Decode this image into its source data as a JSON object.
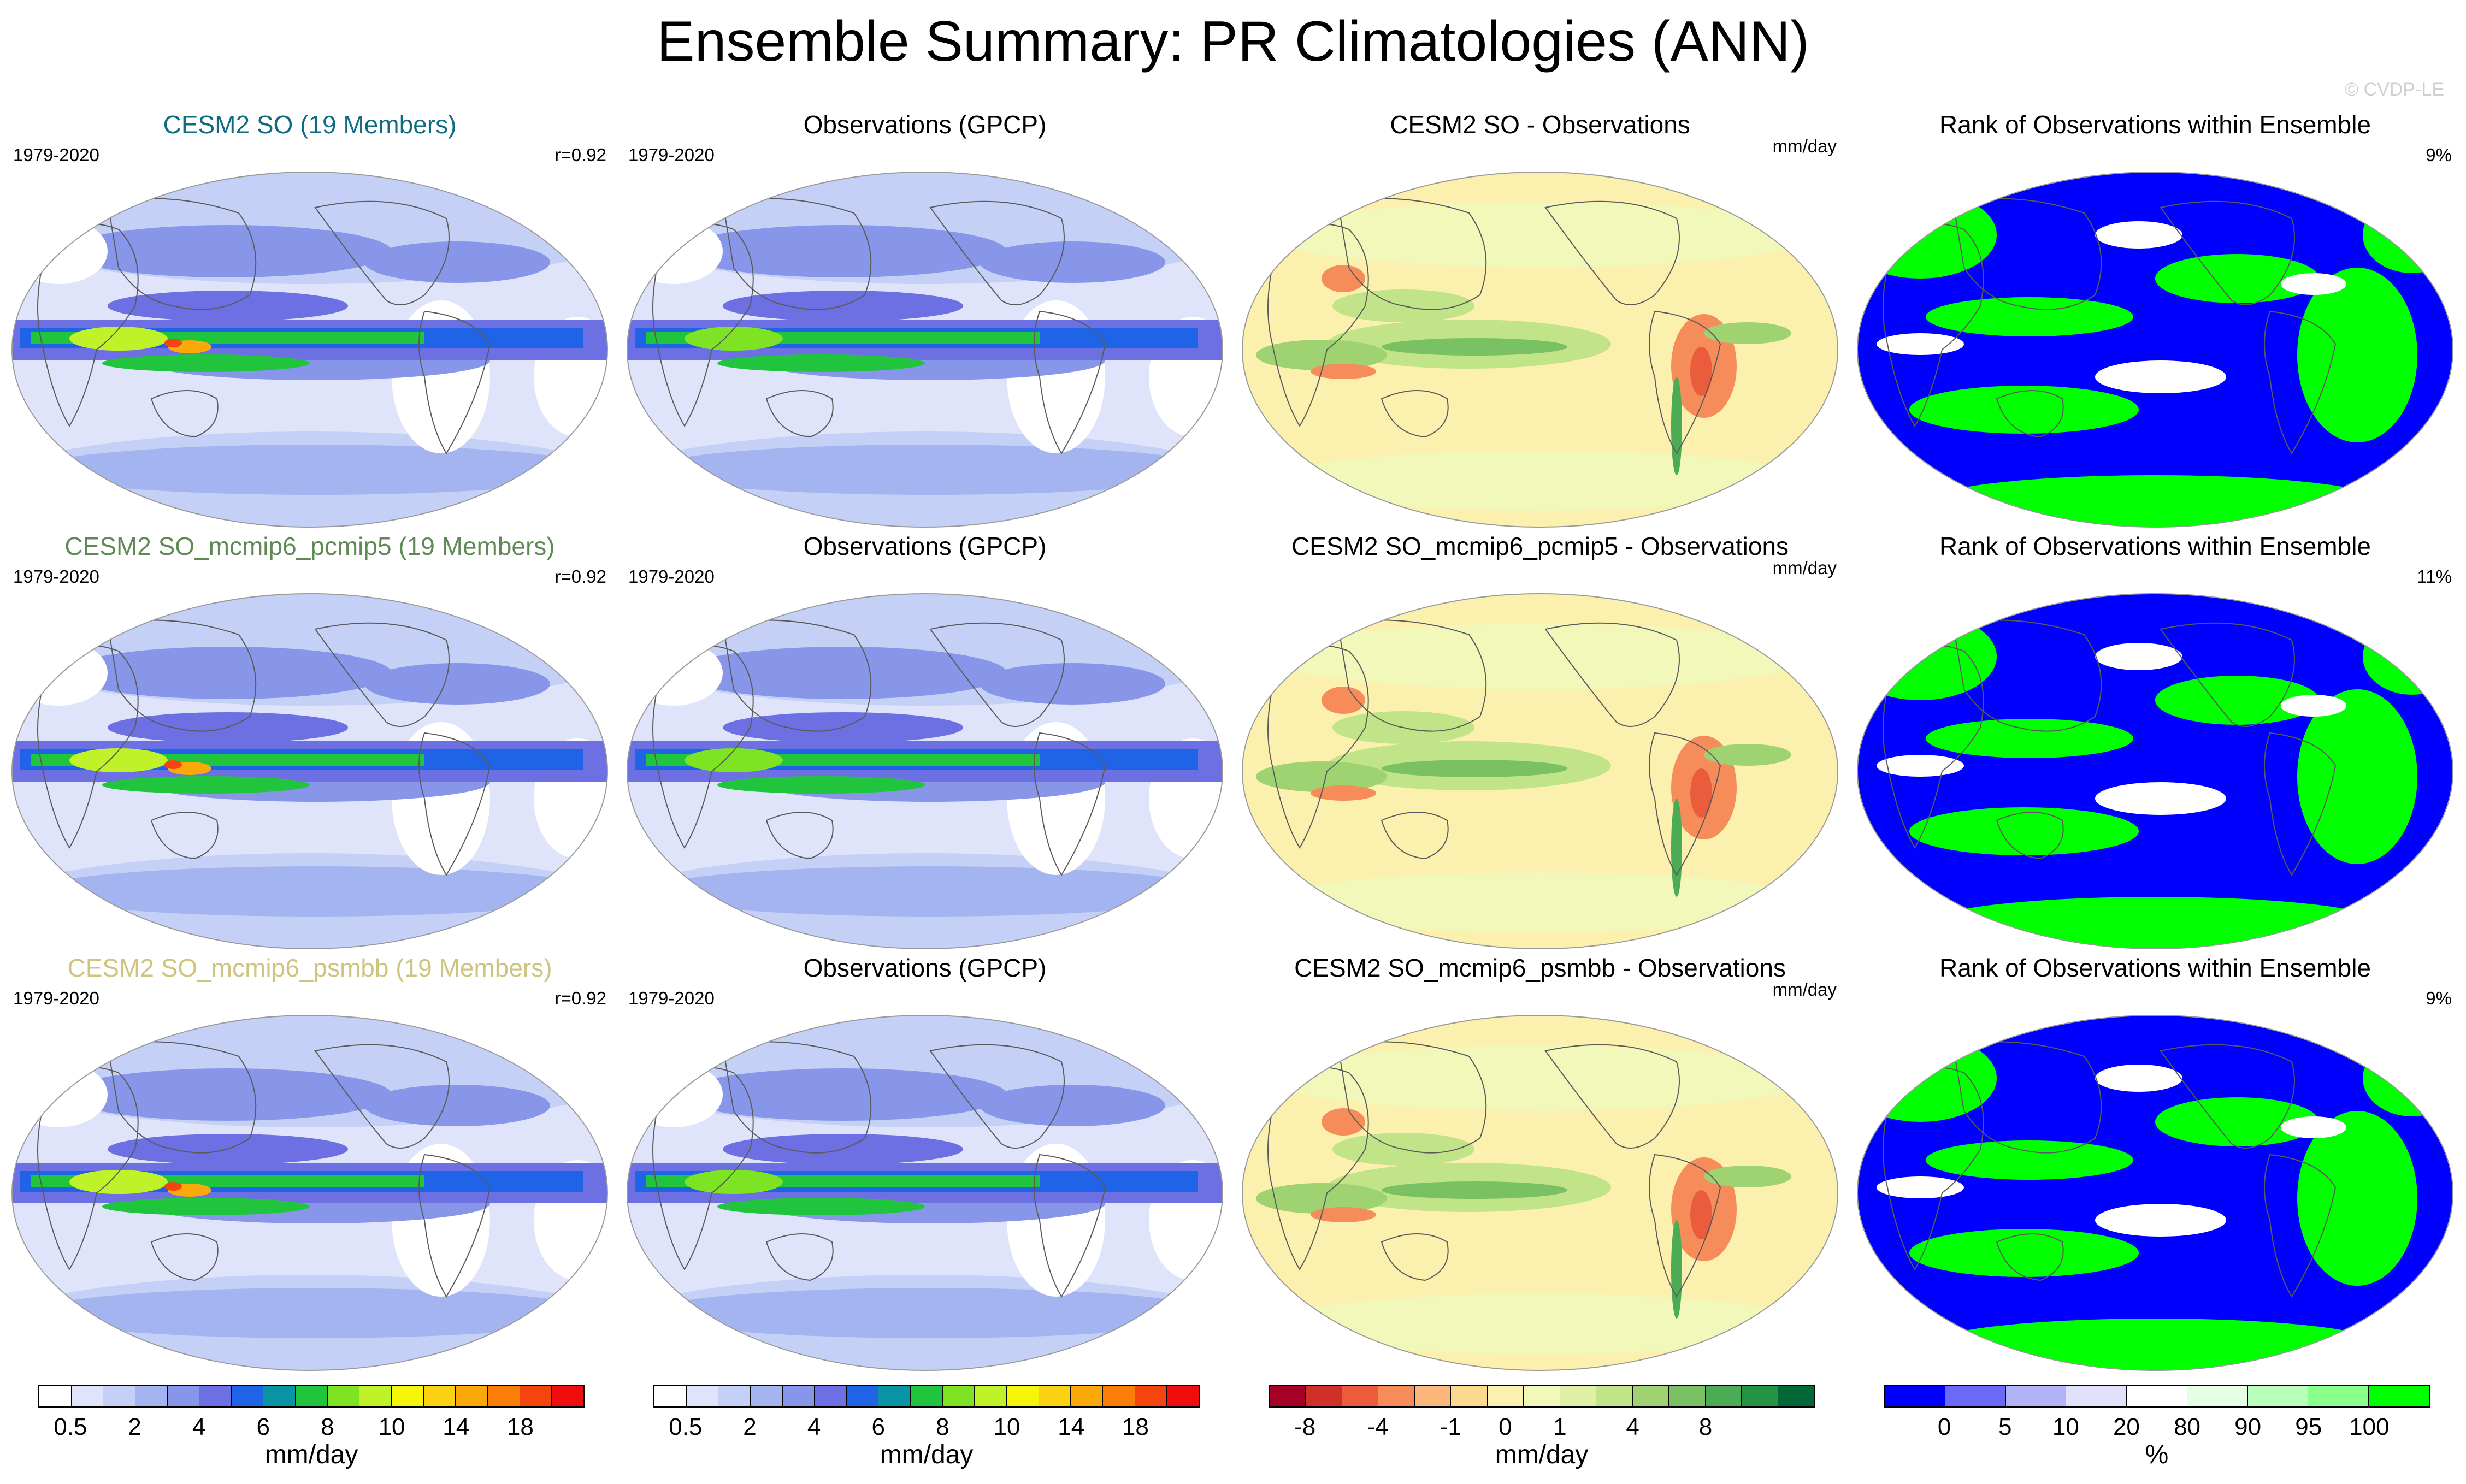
{
  "header": {
    "title": "Ensemble Summary: PR Climatologies (ANN)",
    "watermark": "© CVDP-LE"
  },
  "palettes": {
    "pr": [
      "#ffffff",
      "#dfe4fb",
      "#c5d0f6",
      "#a4b4f0",
      "#8896ea",
      "#6c70e2",
      "#1f63e6",
      "#0a93a4",
      "#20c43d",
      "#7ee322",
      "#bff229",
      "#f5f50a",
      "#fbd213",
      "#fba80a",
      "#fb7e0b",
      "#f5450f",
      "#f00d0d"
    ],
    "diff": [
      "#a50026",
      "#d03027",
      "#eb5c3c",
      "#f68c59",
      "#fbb87a",
      "#fcd98f",
      "#fbf0ad",
      "#f2f7ba",
      "#dff0a6",
      "#c1e488",
      "#9fd372",
      "#79c162",
      "#4cac55",
      "#249444",
      "#006837"
    ],
    "rank": [
      "#0000ff",
      "#6a6af7",
      "#b2b2f8",
      "#e1e1fc",
      "#ffffff",
      "#e5ffe5",
      "#b9ffb9",
      "#8aff8a",
      "#00ff00"
    ]
  },
  "rows": [
    {
      "model": {
        "title": "CESM2 SO (19 Members)",
        "title_color": "#0e6b82",
        "period": "1979-2020",
        "corr": "r=0.92"
      },
      "obs": {
        "title": "Observations (GPCP)",
        "period": "1979-2020"
      },
      "diff": {
        "title": "CESM2 SO - Observations",
        "units": "mm/day"
      },
      "rank": {
        "title": "Rank of Observations within Ensemble",
        "pct": "9%"
      }
    },
    {
      "model": {
        "title": "CESM2 SO_mcmip6_pcmip5 (19 Members)",
        "title_color": "#5f8a55",
        "period": "1979-2020",
        "corr": "r=0.92"
      },
      "obs": {
        "title": "Observations (GPCP)",
        "period": "1979-2020"
      },
      "diff": {
        "title": "CESM2 SO_mcmip6_pcmip5 - Observations",
        "units": "mm/day"
      },
      "rank": {
        "title": "Rank of Observations within Ensemble",
        "pct": "11%"
      }
    },
    {
      "model": {
        "title": "CESM2 SO_mcmip6_psmbb (19 Members)",
        "title_color": "#cfc47f",
        "period": "1979-2020",
        "corr": "r=0.92"
      },
      "obs": {
        "title": "Observations (GPCP)",
        "period": "1979-2020"
      },
      "diff": {
        "title": "CESM2 SO_mcmip6_psmbb - Observations",
        "units": "mm/day"
      },
      "rank": {
        "title": "Rank of Observations within Ensemble",
        "pct": "9%"
      }
    }
  ],
  "colorbars": [
    {
      "id": "pr-model",
      "palette": "pr",
      "unit": "mm/day",
      "ticks": [
        "0.5",
        "2",
        "4",
        "6",
        "8",
        "10",
        "14",
        "18"
      ],
      "tick_positions": [
        1,
        3,
        5,
        7,
        9,
        11,
        13,
        15
      ]
    },
    {
      "id": "pr-obs",
      "palette": "pr",
      "unit": "mm/day",
      "ticks": [
        "0.5",
        "2",
        "4",
        "6",
        "8",
        "10",
        "14",
        "18"
      ],
      "tick_positions": [
        1,
        3,
        5,
        7,
        9,
        11,
        13,
        15
      ]
    },
    {
      "id": "diff",
      "palette": "diff",
      "unit": "mm/day",
      "ticks": [
        "-8",
        "-4",
        "-1",
        "0",
        "1",
        "4",
        "8"
      ],
      "tick_positions": [
        1,
        3,
        5,
        6.5,
        8,
        10,
        12
      ]
    },
    {
      "id": "rank",
      "palette": "rank",
      "unit": "%",
      "ticks": [
        "0",
        "5",
        "10",
        "20",
        "80",
        "90",
        "95",
        "100"
      ],
      "tick_positions": [
        1,
        2,
        3,
        4,
        5,
        6,
        7,
        8
      ]
    }
  ]
}
